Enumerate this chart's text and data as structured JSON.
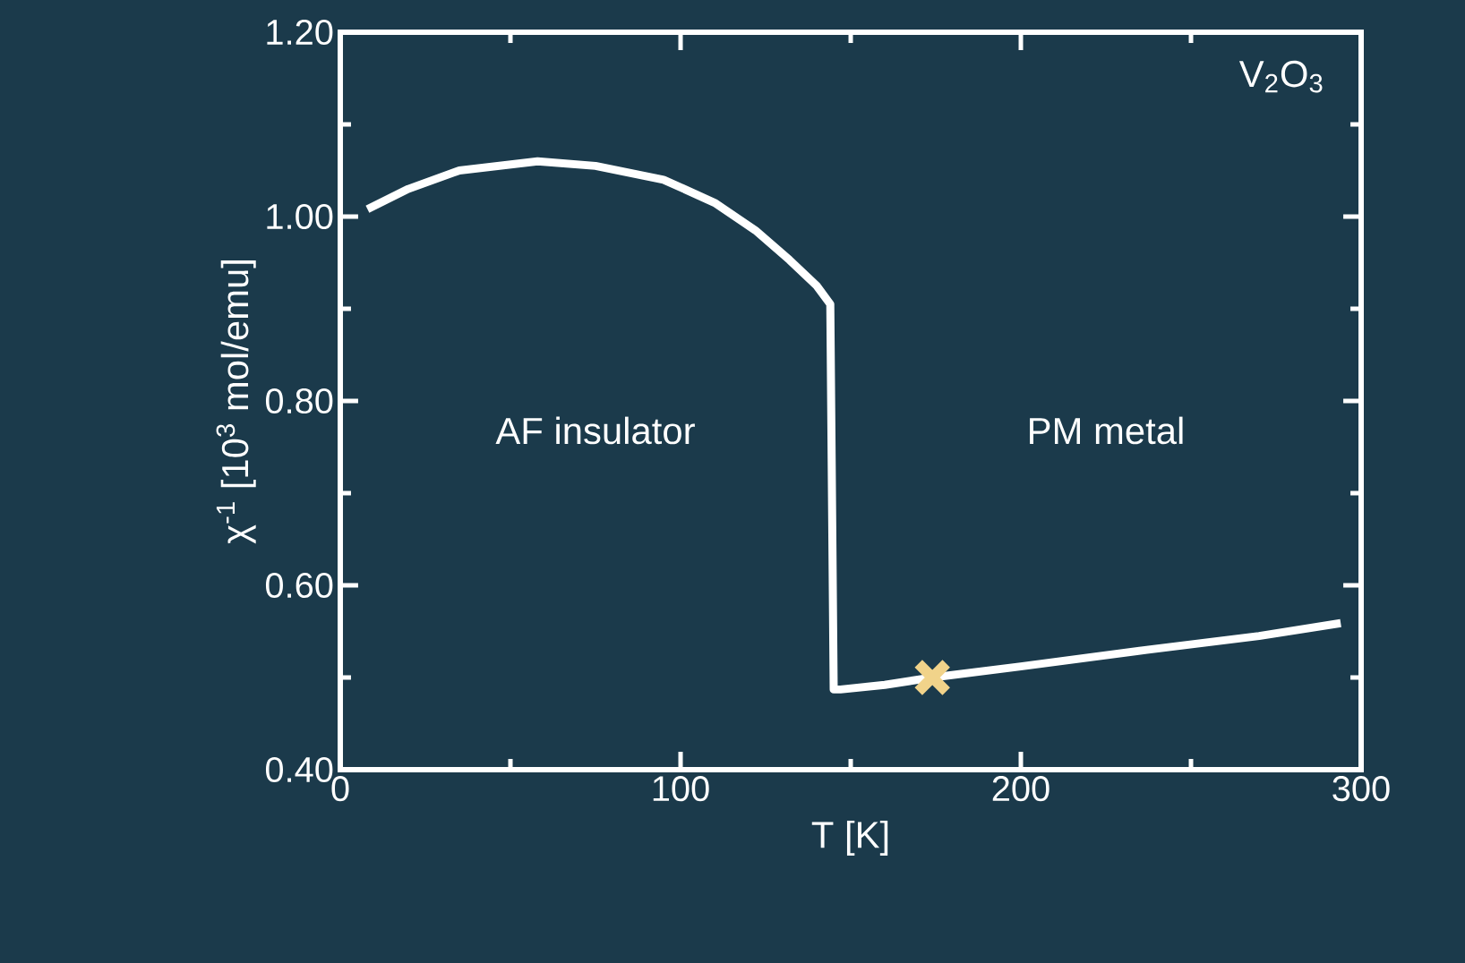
{
  "chart_data": {
    "type": "line",
    "xlabel": "T [K]",
    "ylabel": "χ$^{-1}$  [10$^{3}$ mol/emu]",
    "annotations": [
      "V$_{2}$O$_{3}$",
      "AF insulator",
      "PM metal"
    ],
    "xlim": [
      0,
      300
    ],
    "ylim": [
      0.4,
      1.2
    ],
    "xticks": [
      0,
      100,
      200,
      300
    ],
    "yticks": [
      {
        "value": 0.4,
        "label": "0.40"
      },
      {
        "value": 0.6,
        "label": "0.60"
      },
      {
        "value": 0.8,
        "label": "0.80"
      },
      {
        "value": 1.0,
        "label": "1.00"
      },
      {
        "value": 1.2,
        "label": "1.20"
      }
    ],
    "grid": false,
    "series": [
      {
        "color": "#ffffff",
        "marker": "none",
        "x": [
          8,
          20,
          35,
          58,
          75,
          95,
          110,
          122,
          132,
          140,
          144,
          145,
          147,
          160,
          174,
          200,
          237,
          270,
          294
        ],
        "values": [
          1.008,
          1.03,
          1.05,
          1.06,
          1.055,
          1.04,
          1.015,
          0.985,
          0.953,
          0.925,
          0.905,
          0.487,
          0.487,
          0.492,
          0.5,
          0.512,
          0.53,
          0.545,
          0.559
        ]
      },
      {
        "type": "scatter",
        "color": "#f1d38a",
        "marker": "cross",
        "x": [
          174
        ],
        "values": [
          0.5
        ]
      }
    ]
  }
}
